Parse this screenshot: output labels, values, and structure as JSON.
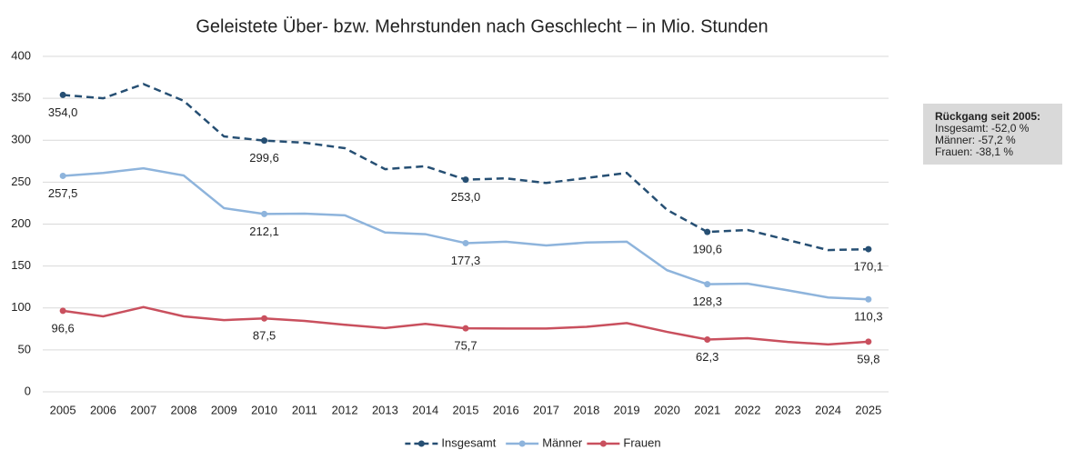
{
  "chart_data": {
    "type": "line",
    "title": "Geleistete Über- bzw. Mehrstunden nach Geschlecht – in Mio. Stunden",
    "categories": [
      "2005",
      "2006",
      "2007",
      "2008",
      "2009",
      "2010",
      "2011",
      "2012",
      "2013",
      "2014",
      "2015",
      "2016",
      "2017",
      "2018",
      "2019",
      "2020",
      "2021",
      "2022",
      "2023",
      "2024",
      "2025"
    ],
    "series": [
      {
        "name": "Insgesamt",
        "color": "#264f73",
        "dashed": true,
        "values": [
          354.0,
          350,
          367,
          347,
          304.5,
          299.6,
          297,
          290.5,
          265.5,
          269,
          253.0,
          254.5,
          249,
          255,
          261,
          217,
          190.6,
          193,
          181,
          169,
          170.1
        ],
        "value_labels": [
          "354,0",
          null,
          null,
          null,
          null,
          "299,6",
          null,
          null,
          null,
          null,
          "253,0",
          null,
          null,
          null,
          null,
          null,
          "190,6",
          null,
          null,
          null,
          "170,1"
        ]
      },
      {
        "name": "Männer",
        "color": "#8eb4dc",
        "dashed": false,
        "values": [
          257.5,
          261,
          266.5,
          258,
          219,
          212.1,
          212.5,
          210.5,
          190,
          188,
          177.3,
          179,
          174.5,
          178,
          179,
          145,
          128.3,
          129,
          121,
          112.5,
          110.3
        ],
        "value_labels": [
          "257,5",
          null,
          null,
          null,
          null,
          "212,1",
          null,
          null,
          null,
          null,
          "177,3",
          null,
          null,
          null,
          null,
          null,
          "128,3",
          null,
          null,
          null,
          "110,3"
        ]
      },
      {
        "name": "Frauen",
        "color": "#c9505e",
        "dashed": false,
        "values": [
          96.6,
          90,
          101,
          90,
          85.5,
          87.5,
          84.5,
          80,
          76,
          81,
          75.7,
          75.5,
          75.5,
          77.5,
          82,
          71.5,
          62.3,
          64,
          59.5,
          56.5,
          59.8
        ],
        "value_labels": [
          "96,6",
          null,
          null,
          null,
          null,
          "87,5",
          null,
          null,
          null,
          null,
          "75,7",
          null,
          null,
          null,
          null,
          null,
          "62,3",
          null,
          null,
          null,
          "59,8"
        ]
      }
    ],
    "ylim": [
      0,
      400
    ],
    "yticks": [
      0,
      50,
      100,
      150,
      200,
      250,
      300,
      350,
      400
    ],
    "grid": true,
    "legend": "bottom",
    "annotation": {
      "title": "Rückgang seit 2005:",
      "lines": [
        "Insgesamt: -52,0 %",
        "Männer: -57,2 %",
        "Frauen: -38,1 %"
      ]
    }
  }
}
